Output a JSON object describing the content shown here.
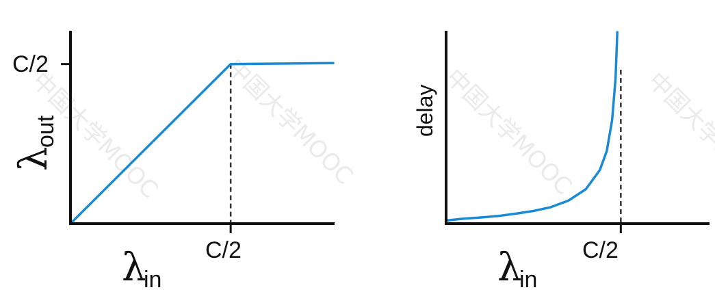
{
  "charts": {
    "left": {
      "y_tick_label": "C/2",
      "x_tick_label": "C/2",
      "y_symbol": "λ",
      "y_subscript": "out",
      "x_symbol": "λ",
      "x_subscript": "in"
    },
    "right": {
      "y_label": "delay",
      "x_tick_label": "C/2",
      "x_symbol": "λ",
      "x_subscript": "in"
    }
  },
  "watermark": "中国大学MOOC",
  "colors": {
    "curve": "#1a8ad4",
    "axis": "#111111"
  },
  "chart_data": [
    {
      "type": "line",
      "title": "",
      "xlabel": "λin",
      "ylabel": "λout",
      "xlim": [
        0,
        0.82
      ],
      "ylim": [
        0,
        0.6
      ],
      "x_ticks": [
        {
          "value": 0.5,
          "label": "C/2"
        }
      ],
      "y_ticks": [
        {
          "value": 0.5,
          "label": "C/2"
        }
      ],
      "series": [
        {
          "x": [
            0,
            0.5,
            0.82
          ],
          "y": [
            0,
            0.5,
            0.503
          ]
        }
      ],
      "reference_lines": [
        {
          "x": 0.5,
          "style": "dashed"
        }
      ],
      "grid": false
    },
    {
      "type": "line",
      "title": "",
      "xlabel": "λin",
      "ylabel": "delay",
      "xlim": [
        0,
        0.75
      ],
      "ylim": [
        0,
        50
      ],
      "x_ticks": [
        {
          "value": 0.5,
          "label": "C/2"
        }
      ],
      "series": [
        {
          "x": [
            0,
            0.05,
            0.1,
            0.15,
            0.2,
            0.25,
            0.3,
            0.35,
            0.4,
            0.44,
            0.46,
            0.475,
            0.485,
            0.49
          ],
          "y": [
            0.8,
            1.3,
            1.6,
            2.0,
            2.6,
            3.3,
            4.3,
            6.0,
            9.0,
            14.0,
            19.0,
            27.0,
            38.0,
            50.0
          ]
        }
      ],
      "reference_lines": [
        {
          "x": 0.5,
          "style": "dashed"
        }
      ],
      "grid": false
    }
  ]
}
